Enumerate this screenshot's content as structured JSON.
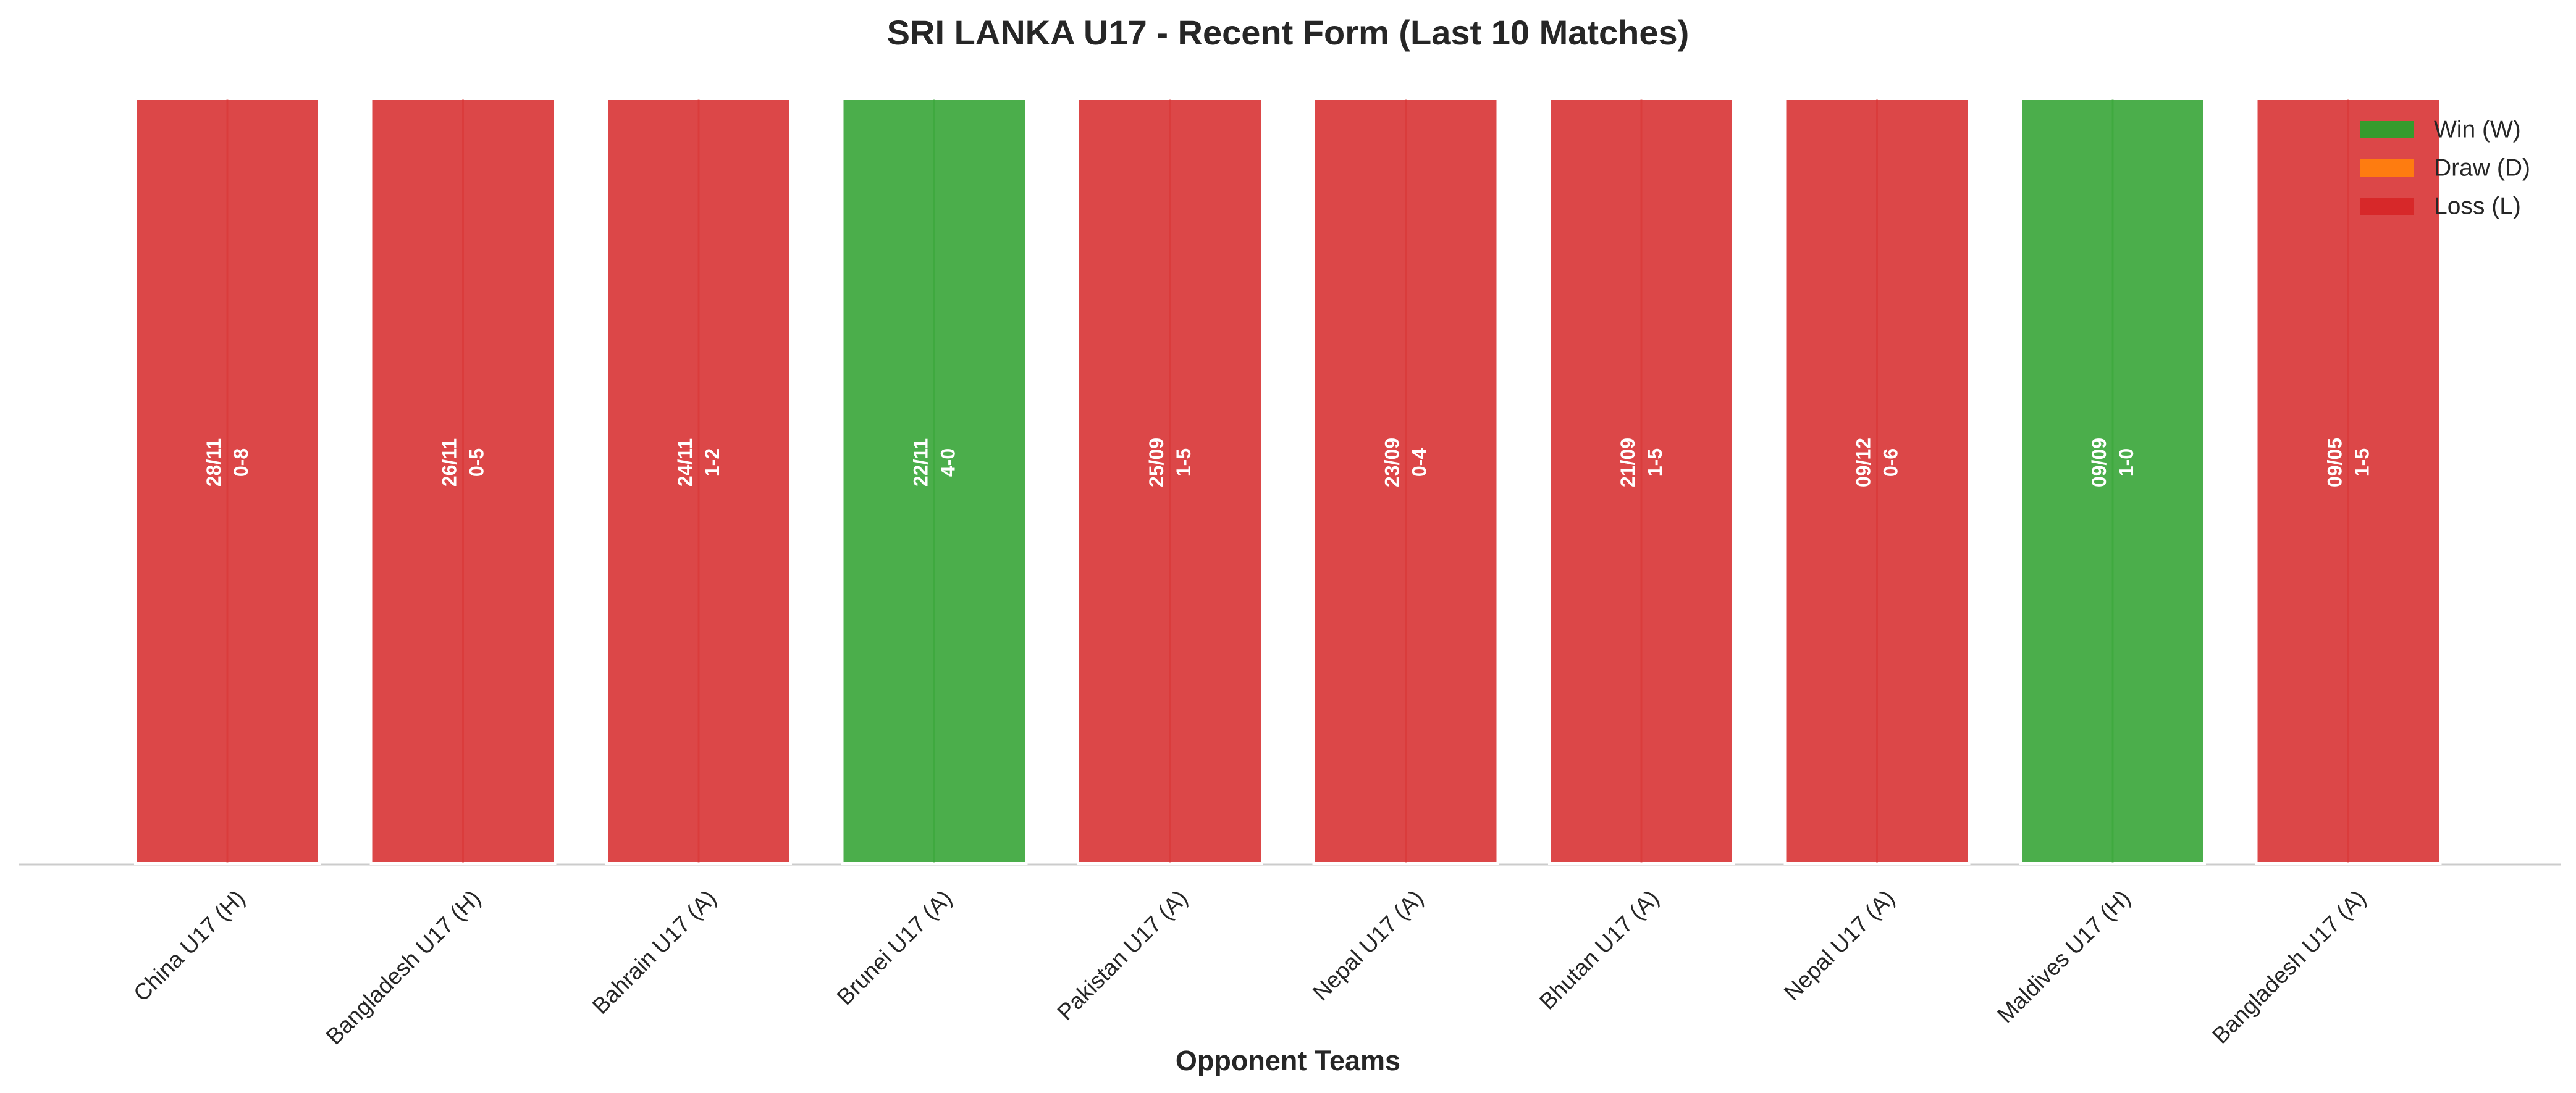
{
  "chart_data": {
    "type": "bar",
    "title": "SRI LANKA U17 - Recent Form (Last 10 Matches)",
    "xlabel": "Opponent Teams",
    "ylabel": "",
    "ylim": [
      0,
      1
    ],
    "grid": false,
    "categories": [
      "China U17 (H)",
      "Bangladesh U17 (H)",
      "Bahrain U17 (A)",
      "Brunei U17 (A)",
      "Pakistan U17 (A)",
      "Nepal U17 (A)",
      "Bhutan U17 (A)",
      "Nepal U17 (A)",
      "Maldives U17 (H)",
      "Bangladesh U17 (A)"
    ],
    "values": [
      1,
      1,
      1,
      1,
      1,
      1,
      1,
      1,
      1,
      1
    ],
    "results": [
      "L",
      "L",
      "L",
      "W",
      "L",
      "L",
      "L",
      "L",
      "W",
      "L"
    ],
    "dates": [
      "28/11",
      "26/11",
      "24/11",
      "22/11",
      "25/09",
      "23/09",
      "21/09",
      "09/12",
      "09/09",
      "09/05"
    ],
    "scores": [
      "0-8",
      "0-5",
      "1-2",
      "4-0",
      "1-5",
      "0-4",
      "1-5",
      "0-6",
      "1-0",
      "1-5"
    ],
    "legend": {
      "position": "top-right",
      "entries": [
        {
          "key": "W",
          "label": "Win (W)",
          "color": "#2ca02c"
        },
        {
          "key": "D",
          "label": "Draw (D)",
          "color": "#ff7f0e"
        },
        {
          "key": "L",
          "label": "Loss (L)",
          "color": "#d62728"
        }
      ]
    },
    "colors": {
      "W": "#2ca02c",
      "D": "#ff7f0e",
      "L": "#d62728"
    }
  }
}
